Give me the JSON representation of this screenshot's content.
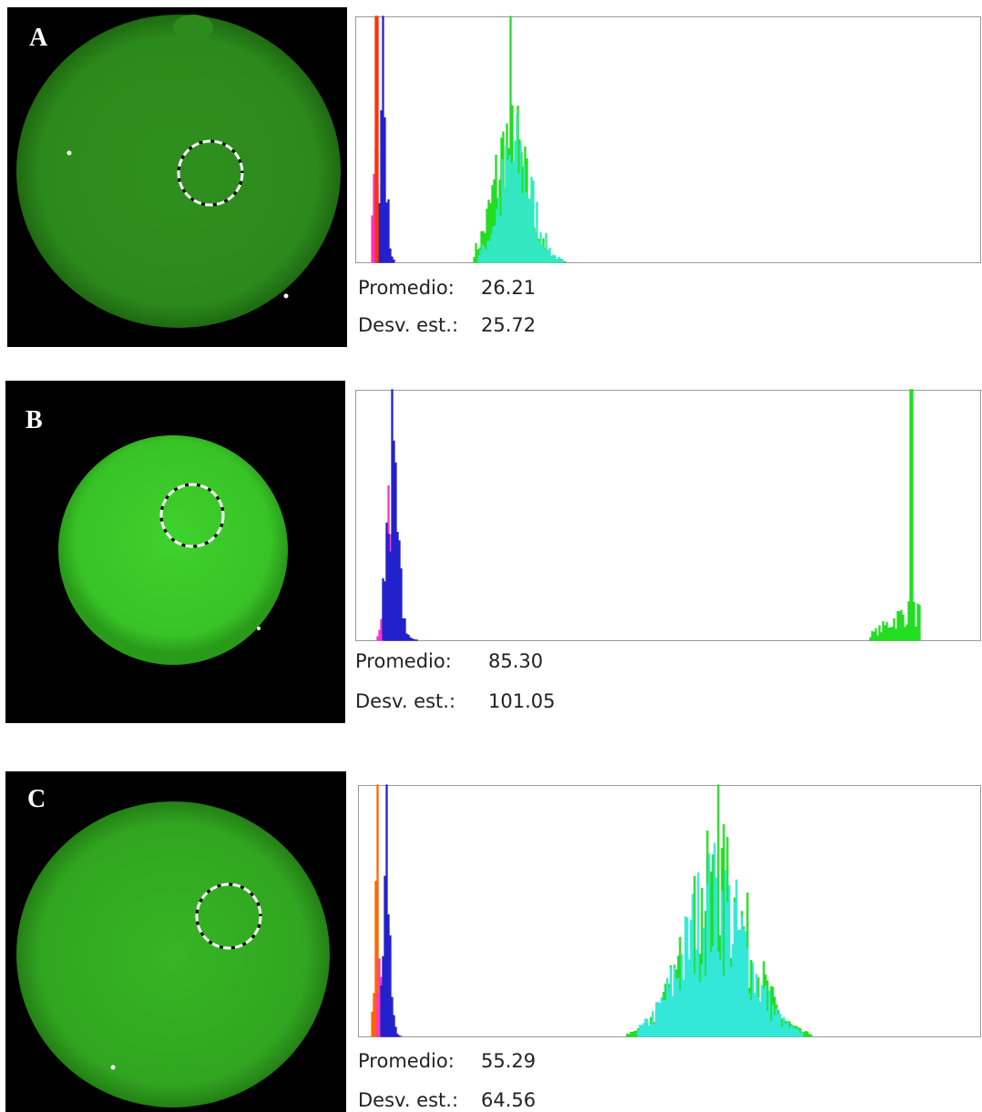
{
  "panels": [
    {
      "label": "A",
      "stats": [
        {
          "name": "Promedio:",
          "value": "26.21"
        },
        {
          "name": "Desv. est.:",
          "value": "25.72"
        }
      ]
    },
    {
      "label": "B",
      "stats": [
        {
          "name": "Promedio:",
          "value": "85.30"
        },
        {
          "name": "Desv. est.:",
          "value": "101.05"
        }
      ]
    },
    {
      "label": "C",
      "stats": [
        {
          "name": "Promedio:",
          "value": "55.29"
        },
        {
          "name": "Desv. est.:",
          "value": "64.56"
        }
      ]
    }
  ]
}
